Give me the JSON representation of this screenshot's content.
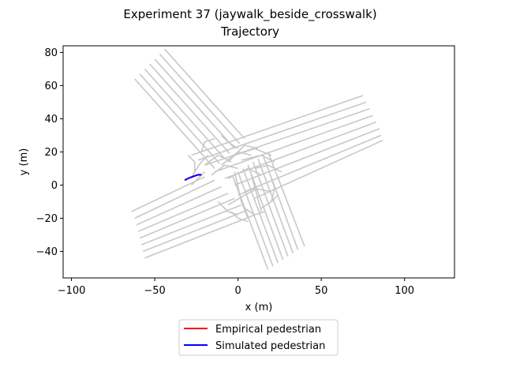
{
  "chart_data": {
    "type": "line",
    "title": "Experiment 37 (jaywalk_beside_crosswalk)",
    "subtitle": "Trajectory",
    "xlabel": "x (m)",
    "ylabel": "y (m)",
    "xlim": [
      -105,
      130
    ],
    "ylim": [
      -56,
      84
    ],
    "x_ticks": [
      -100,
      -50,
      0,
      50,
      100
    ],
    "y_ticks": [
      -40,
      -20,
      0,
      20,
      40,
      60,
      80
    ],
    "grid": false,
    "legend_position": "below plot",
    "series": [
      {
        "name": "Empirical pedestrian",
        "color": "#ff0000",
        "points": [
          [
            -32,
            3.0
          ],
          [
            -30,
            4.0
          ],
          [
            -28,
            4.8
          ],
          [
            -26,
            5.5
          ],
          [
            -24,
            6.2
          ],
          [
            -22,
            6.2
          ]
        ]
      },
      {
        "name": "Simulated pedestrian",
        "color": "#0000ff",
        "points": [
          [
            -32,
            3.0
          ],
          [
            -30,
            4.0
          ],
          [
            -28,
            4.8
          ],
          [
            -26,
            5.5
          ],
          [
            -24,
            6.2
          ],
          [
            -22,
            6.2
          ]
        ]
      }
    ],
    "background": {
      "name": "lane centerlines",
      "color": "#c8c8c8",
      "lines": [
        [
          [
            -62,
            64
          ],
          [
            -14,
            10
          ]
        ],
        [
          [
            -59,
            67
          ],
          [
            -11,
            13
          ]
        ],
        [
          [
            -56,
            70
          ],
          [
            -8,
            16
          ]
        ],
        [
          [
            -53,
            73
          ],
          [
            -5,
            19
          ]
        ],
        [
          [
            -50,
            76
          ],
          [
            -2,
            22
          ]
        ],
        [
          [
            -47,
            79
          ],
          [
            1,
            25
          ]
        ],
        [
          [
            -44,
            82
          ],
          [
            4,
            28
          ]
        ],
        [
          [
            -3,
            5
          ],
          [
            18,
            -51
          ]
        ],
        [
          [
            0,
            8
          ],
          [
            21,
            -49
          ]
        ],
        [
          [
            3,
            10
          ],
          [
            24,
            -47
          ]
        ],
        [
          [
            6,
            12
          ],
          [
            27,
            -45
          ]
        ],
        [
          [
            9,
            14
          ],
          [
            30,
            -43
          ]
        ],
        [
          [
            12,
            16
          ],
          [
            33,
            -41
          ]
        ],
        [
          [
            15,
            18
          ],
          [
            36,
            -39
          ]
        ],
        [
          [
            18,
            20
          ],
          [
            40,
            -37
          ]
        ],
        [
          [
            -64,
            -16
          ],
          [
            -20,
            5
          ]
        ],
        [
          [
            -62,
            -20
          ],
          [
            -14,
            3
          ]
        ],
        [
          [
            -61,
            -24
          ],
          [
            -10,
            -1
          ]
        ],
        [
          [
            -60,
            -28
          ],
          [
            -6,
            -5
          ]
        ],
        [
          [
            -59,
            -32
          ],
          [
            -2,
            -8
          ]
        ],
        [
          [
            -58,
            -36
          ],
          [
            2,
            -12
          ]
        ],
        [
          [
            -57,
            -40
          ],
          [
            6,
            -15
          ]
        ],
        [
          [
            -56,
            -44
          ],
          [
            10,
            -18
          ]
        ],
        [
          [
            -28,
            18
          ],
          [
            75,
            54
          ]
        ],
        [
          [
            -24,
            15
          ],
          [
            77,
            50
          ]
        ],
        [
          [
            -20,
            12
          ],
          [
            79,
            46
          ]
        ],
        [
          [
            -14,
            8
          ],
          [
            81,
            42
          ]
        ],
        [
          [
            -8,
            4
          ],
          [
            83,
            38
          ]
        ],
        [
          [
            -2,
            0
          ],
          [
            85,
            34
          ]
        ],
        [
          [
            4,
            -4
          ],
          [
            86,
            30
          ]
        ],
        [
          [
            10,
            -8
          ],
          [
            87,
            27
          ]
        ],
        [
          [
            -10,
            12
          ],
          [
            0,
            20
          ],
          [
            8,
            18
          ]
        ],
        [
          [
            -6,
            14
          ],
          [
            4,
            24
          ],
          [
            12,
            22
          ]
        ],
        [
          [
            -2,
            18
          ],
          [
            10,
            22
          ],
          [
            20,
            18
          ]
        ],
        [
          [
            -22,
            20
          ],
          [
            -20,
            26
          ],
          [
            -14,
            28
          ]
        ],
        [
          [
            -26,
            8
          ],
          [
            -22,
            14
          ],
          [
            -18,
            18
          ]
        ],
        [
          [
            -28,
            0
          ],
          [
            -24,
            4
          ],
          [
            -20,
            8
          ]
        ],
        [
          [
            2,
            15
          ],
          [
            14,
            18
          ],
          [
            22,
            14
          ]
        ],
        [
          [
            10,
            10
          ],
          [
            18,
            12
          ],
          [
            26,
            8
          ]
        ],
        [
          [
            20,
            4
          ],
          [
            22,
            -2
          ],
          [
            20,
            -10
          ]
        ],
        [
          [
            -4,
            -16
          ],
          [
            0,
            -20
          ],
          [
            6,
            -22
          ]
        ],
        [
          [
            -12,
            -10
          ],
          [
            -6,
            -16
          ],
          [
            0,
            -18
          ]
        ],
        [
          [
            4,
            -14
          ],
          [
            10,
            -18
          ],
          [
            16,
            -16
          ]
        ],
        [
          [
            -20,
            12
          ],
          [
            -12,
            18
          ],
          [
            -4,
            14
          ]
        ],
        [
          [
            -16,
            6
          ],
          [
            -8,
            12
          ],
          [
            0,
            10
          ]
        ],
        [
          [
            -6,
            4
          ],
          [
            6,
            10
          ],
          [
            14,
            6
          ]
        ],
        [
          [
            0,
            -6
          ],
          [
            10,
            -2
          ],
          [
            20,
            -4
          ]
        ],
        [
          [
            -2,
            8
          ],
          [
            2,
            -10
          ],
          [
            6,
            -20
          ]
        ],
        [
          [
            8,
            6
          ],
          [
            12,
            -8
          ],
          [
            14,
            -16
          ]
        ],
        [
          [
            -30,
            18
          ],
          [
            -26,
            14
          ],
          [
            -26,
            8
          ],
          [
            -28,
            4
          ]
        ],
        [
          [
            -10,
            30
          ],
          [
            -6,
            26
          ],
          [
            0,
            22
          ]
        ],
        [
          [
            14,
            -14
          ],
          [
            20,
            -10
          ],
          [
            24,
            -6
          ]
        ],
        [
          [
            -6,
            -12
          ],
          [
            4,
            -6
          ],
          [
            12,
            -2
          ]
        ]
      ]
    }
  }
}
